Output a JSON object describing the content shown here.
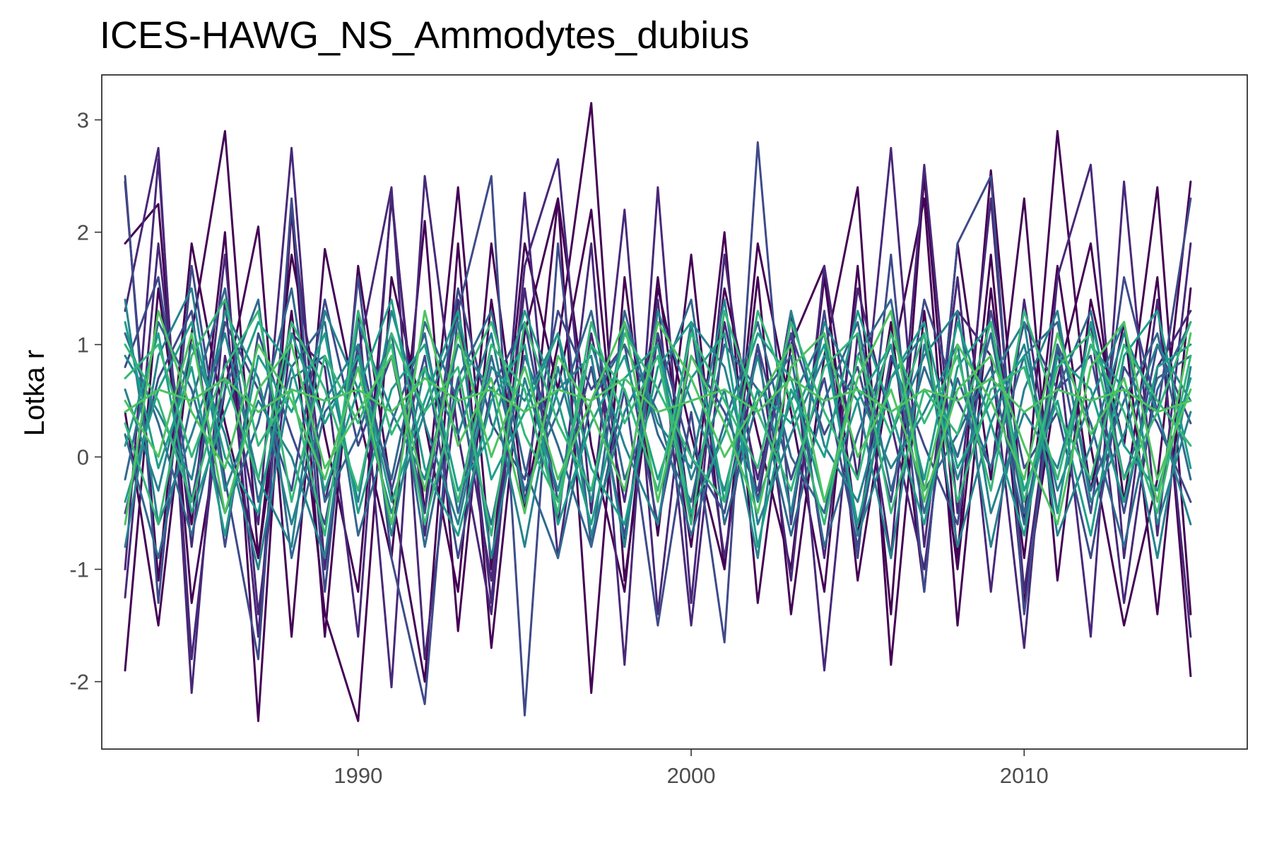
{
  "chart_data": {
    "type": "line",
    "title": "ICES-HAWG_NS_Ammodytes_dubius",
    "xlabel": "",
    "ylabel": "Lotka r",
    "xlim": [
      1982.3,
      2016.7
    ],
    "ylim": [
      -2.6,
      3.4
    ],
    "x_ticks": [
      1990,
      2000,
      2010
    ],
    "x_tick_labels": [
      "1990",
      "2000",
      "2010"
    ],
    "y_ticks": [
      -2,
      -1,
      0,
      1,
      2,
      3
    ],
    "y_tick_labels": [
      "-2",
      "-1",
      "0",
      "1",
      "2",
      "3"
    ],
    "grid": false,
    "legend": "none",
    "palette": [
      "#440154",
      "#482878",
      "#3e4a89",
      "#31688e",
      "#26828e",
      "#1f9e89",
      "#35b779",
      "#4dc361"
    ],
    "x": [
      1983,
      1984,
      1985,
      1986,
      1987,
      1988,
      1989,
      1990,
      1991,
      1992,
      1993,
      1994,
      1995,
      1996,
      1997,
      1998,
      1999,
      2000,
      2001,
      2002,
      2003,
      2004,
      2005,
      2006,
      2007,
      2008,
      2009,
      2010,
      2011,
      2012,
      2013,
      2014,
      2015
    ],
    "series": [
      {
        "values": [
          2.45,
          -1.1,
          1.9,
          0.3,
          -0.9,
          1.8,
          0.2,
          -1.2,
          2.3,
          -0.5,
          2.4,
          -1.0,
          1.9,
          0.6,
          2.2,
          -0.8,
          1.5,
          0.2,
          -1.0,
          1.9,
          0.4,
          -1.2,
          1.7,
          -1.4,
          2.5,
          -0.9,
          2.55,
          -0.6,
          2.9,
          0.1,
          -1.5,
          -0.2,
          2.45
        ]
      },
      {
        "values": [
          -1.9,
          1.5,
          -0.6,
          2.0,
          -2.35,
          2.2,
          -1.6,
          1.7,
          -0.3,
          -2.0,
          1.9,
          -1.7,
          1.1,
          2.3,
          -2.1,
          1.6,
          -0.7,
          1.8,
          -1.0,
          1.6,
          -1.4,
          0.9,
          2.4,
          -1.85,
          1.3,
          -1.0,
          1.8,
          -1.3,
          0.7,
          1.9,
          -0.4,
          1.6,
          -1.95
        ]
      },
      {
        "values": [
          1.9,
          2.25,
          -1.3,
          0.6,
          2.05,
          -1.6,
          1.85,
          0.4,
          -0.9,
          2.1,
          -1.55,
          1.4,
          -0.5,
          2.3,
          0.1,
          -1.2,
          1.6,
          -0.6,
          2.0,
          -1.3,
          1.0,
          1.7,
          -1.1,
          0.8,
          2.3,
          -1.5,
          1.5,
          -0.9,
          1.7,
          -0.3,
          1.2,
          -1.4,
          1.5
        ]
      },
      {
        "values": [
          0.4,
          -1.5,
          1.1,
          2.9,
          -0.9,
          1.3,
          -1.4,
          -2.35,
          1.6,
          0.3,
          -1.2,
          1.9,
          -0.4,
          1.0,
          3.15,
          -1.1,
          1.1,
          -0.8,
          1.5,
          0.2,
          -1.0,
          1.6,
          -0.7,
          1.2,
          -1.2,
          1.9,
          -0.2,
          2.3,
          -1.1,
          1.4,
          0.1,
          2.4,
          -1.4
        ]
      },
      {
        "values": [
          -1.0,
          2.65,
          -1.8,
          0.9,
          -0.6,
          2.75,
          -1.0,
          1.3,
          -2.05,
          2.5,
          0.2,
          -1.4,
          1.7,
          2.65,
          -0.5,
          2.2,
          -1.4,
          1.2,
          -0.9,
          1.0,
          -1.1,
          1.7,
          -0.2,
          2.75,
          -0.8,
          1.6,
          -1.2,
          1.4,
          -0.5,
          1.2,
          -1.3,
          0.8,
          1.3
        ]
      },
      {
        "values": [
          1.3,
          2.75,
          -2.1,
          1.4,
          -1.6,
          2.2,
          -0.4,
          0.9,
          2.4,
          -1.8,
          0.7,
          -1.1,
          1.5,
          -0.6,
          1.9,
          -1.85,
          2.4,
          -1.3,
          1.8,
          -0.4,
          1.3,
          -1.9,
          1.1,
          -0.9,
          2.6,
          -0.5,
          2.3,
          -1.2,
          1.0,
          -1.6,
          2.45,
          -0.7,
          1.9
        ]
      },
      {
        "values": [
          -1.25,
          1.9,
          -0.8,
          1.8,
          -1.4,
          1.1,
          0.8,
          -1.6,
          2.35,
          -0.7,
          1.4,
          -1.3,
          2.35,
          -0.9,
          1.1,
          -0.4,
          1.4,
          -1.5,
          1.2,
          -0.2,
          1.1,
          -0.9,
          1.5,
          0.3,
          -1.0,
          1.3,
          0.9,
          -1.7,
          1.6,
          2.6,
          -0.9,
          1.4,
          -1.6
        ]
      },
      {
        "values": [
          2.5,
          -1.3,
          1.7,
          -0.2,
          -1.8,
          2.3,
          -1.2,
          1.6,
          -0.9,
          -2.2,
          1.3,
          2.5,
          -2.3,
          1.9,
          -0.8,
          0.6,
          -1.5,
          0.4,
          -1.65,
          2.8,
          -0.6,
          1.3,
          -0.9,
          1.8,
          -1.2,
          1.9,
          2.5,
          -1.4,
          1.0,
          -0.5,
          1.6,
          0.4,
          2.3
        ]
      },
      {
        "values": [
          0.8,
          1.6,
          -0.4,
          1.2,
          0.6,
          -0.3,
          1.4,
          0.1,
          0.9,
          -0.5,
          1.5,
          0.3,
          -0.2,
          1.3,
          0.6,
          1.0,
          -0.6,
          0.9,
          0.4,
          -0.3,
          1.1,
          0.2,
          0.8,
          -0.4,
          1.4,
          0.5,
          -0.1,
          1.2,
          0.6,
          0.9,
          -0.5,
          1.0,
          0.3
        ]
      },
      {
        "values": [
          -0.5,
          0.7,
          1.3,
          -0.8,
          1.1,
          0.2,
          -0.6,
          1.0,
          -0.3,
          0.9,
          -0.9,
          0.6,
          1.2,
          -0.4,
          0.8,
          -0.7,
          1.1,
          0.0,
          -0.5,
          1.0,
          -0.2,
          0.7,
          -0.8,
          0.9,
          0.1,
          -0.6,
          1.3,
          -0.1,
          0.4,
          -0.9,
          0.8,
          0.3,
          -0.4
        ]
      },
      {
        "values": [
          0.2,
          -0.9,
          0.5,
          1.5,
          -0.4,
          0.8,
          1.2,
          -0.7,
          0.3,
          1.1,
          -0.5,
          0.9,
          -0.3,
          0.4,
          1.3,
          -0.2,
          0.6,
          1.4,
          -0.6,
          0.5,
          0.9,
          -0.8,
          0.2,
          1.0,
          -0.5,
          0.7,
          -0.1,
          0.9,
          1.2,
          -0.3,
          0.5,
          1.1,
          -0.2
        ]
      },
      {
        "values": [
          1.1,
          0.3,
          -0.7,
          0.6,
          1.4,
          -0.9,
          0.4,
          0.8,
          -0.2,
          1.2,
          0.5,
          -0.6,
          0.9,
          0.1,
          -0.8,
          1.3,
          0.2,
          -0.4,
          1.0,
          0.6,
          -0.7,
          0.5,
          1.2,
          -0.3,
          0.8,
          0.0,
          1.1,
          -0.5,
          0.6,
          1.3,
          -0.2,
          0.7,
          0.9
        ]
      },
      {
        "values": [
          -0.2,
          1.2,
          0.6,
          -0.5,
          0.3,
          1.5,
          -0.4,
          0.2,
          1.1,
          -0.8,
          0.7,
          1.3,
          -0.1,
          -0.9,
          0.5,
          1.0,
          0.4,
          -0.7,
          0.3,
          1.2,
          0.0,
          -0.5,
          0.9,
          1.4,
          -0.3,
          0.2,
          0.8,
          -0.6,
          1.0,
          0.3,
          -0.8,
          0.6,
          1.2
        ]
      },
      {
        "values": [
          0.6,
          -0.3,
          1.0,
          0.2,
          -1.0,
          0.7,
          0.9,
          -0.4,
          1.3,
          0.3,
          -0.6,
          0.8,
          0.5,
          1.1,
          -0.7,
          0.4,
          1.0,
          -0.2,
          0.6,
          -0.9,
          1.3,
          0.1,
          -0.4,
          0.7,
          1.1,
          -0.8,
          0.3,
          1.0,
          -0.3,
          0.5,
          1.2,
          -0.6,
          0.4
        ]
      },
      {
        "values": [
          1.4,
          -0.6,
          0.2,
          1.1,
          -0.2,
          -0.8,
          1.3,
          0.6,
          -0.5,
          0.4,
          1.2,
          -0.9,
          0.7,
          -0.3,
          1.0,
          0.1,
          -0.6,
          1.2,
          0.8,
          -0.4,
          0.5,
          1.1,
          -0.7,
          0.2,
          0.9,
          1.3,
          -0.5,
          0.4,
          -0.1,
          1.0,
          0.6,
          -0.9,
          0.8
        ]
      },
      {
        "values": [
          -0.8,
          0.9,
          1.5,
          -0.3,
          0.5,
          0.0,
          -0.9,
          1.2,
          0.4,
          -0.2,
          1.0,
          0.6,
          -0.8,
          0.8,
          -0.4,
          1.2,
          0.3,
          -0.1,
          1.4,
          -0.6,
          0.2,
          0.9,
          0.5,
          -0.9,
          1.0,
          -0.2,
          0.7,
          1.2,
          -0.7,
          0.1,
          1.1,
          0.4,
          -0.6
        ]
      },
      {
        "values": [
          0.9,
          0.4,
          -0.2,
          1.3,
          0.7,
          -0.6,
          0.5,
          1.0,
          -0.7,
          0.8,
          0.2,
          1.1,
          -0.4,
          0.6,
          0.9,
          -0.8,
          1.3,
          0.5,
          -0.3,
          0.9,
          -0.5,
          1.2,
          0.6,
          -0.1,
          0.4,
          1.0,
          -0.8,
          0.6,
          1.3,
          -0.4,
          0.2,
          1.0,
          0.5
        ]
      },
      {
        "values": [
          0.1,
          1.1,
          -0.5,
          0.4,
          1.2,
          0.8,
          -0.3,
          0.6,
          1.4,
          -0.1,
          -0.7,
          0.5,
          1.0,
          -0.6,
          0.3,
          0.9,
          -0.2,
          0.7,
          1.1,
          -0.8,
          0.6,
          0.0,
          1.3,
          0.4,
          -0.6,
          0.8,
          1.2,
          -0.3,
          0.5,
          -0.7,
          0.9,
          1.3,
          -0.1
        ]
      },
      {
        "values": [
          1.2,
          -0.1,
          0.8,
          -0.7,
          0.9,
          0.4,
          1.1,
          -0.5,
          0.6,
          1.0,
          -0.3,
          0.2,
          1.3,
          0.5,
          -0.6,
          0.7,
          1.0,
          -0.5,
          0.2,
          1.1,
          0.7,
          -0.4,
          0.5,
          1.0,
          -0.2,
          1.2,
          0.3,
          -0.7,
          0.9,
          0.6,
          -0.4,
          0.8,
          1.0
        ]
      },
      {
        "values": [
          -0.4,
          0.6,
          1.2,
          0.0,
          -0.5,
          1.1,
          0.3,
          0.9,
          -0.4,
          0.5,
          1.3,
          -0.2,
          0.4,
          1.1,
          -0.1,
          -0.6,
          0.8,
          1.2,
          -0.4,
          0.6,
          0.3,
          1.0,
          -0.6,
          0.7,
          1.2,
          -0.1,
          0.5,
          0.9,
          -0.5,
          1.2,
          0.1,
          -0.3,
          0.7
        ]
      },
      {
        "values": [
          0.7,
          1.0,
          0.0,
          0.8,
          1.3,
          -0.4,
          0.9,
          0.3,
          1.0,
          -0.6,
          0.6,
          1.2,
          0.2,
          -0.4,
          1.0,
          0.6,
          -0.3,
          1.1,
          0.5,
          -0.1,
          1.2,
          0.4,
          -0.2,
          1.1,
          0.3,
          0.9,
          -0.3,
          1.3,
          0.4,
          -0.2,
          1.0,
          0.5,
          0.1
        ]
      },
      {
        "values": [
          0.3,
          -0.6,
          0.9,
          1.4,
          0.1,
          0.6,
          -0.7,
          1.3,
          0.2,
          0.8,
          -0.4,
          1.0,
          0.6,
          -0.5,
          1.2,
          0.3,
          0.9,
          -0.6,
          1.3,
          0.4,
          -0.3,
          0.8,
          1.1,
          -0.5,
          0.6,
          0.2,
          1.2,
          -0.4,
          0.8,
          1.1,
          -0.2,
          0.4,
          1.2
        ]
      },
      {
        "values": [
          1.0,
          0.5,
          -0.4,
          0.7,
          -0.2,
          1.2,
          0.6,
          -0.3,
          1.1,
          0.4,
          0.8,
          -0.7,
          1.2,
          0.3,
          -0.3,
          1.1,
          0.6,
          0.0,
          -0.4,
          1.3,
          0.5,
          -0.6,
          0.9,
          0.2,
          1.1,
          -0.4,
          0.6,
          0.8,
          -0.2,
          1.0,
          0.4,
          -0.5,
          0.9
        ]
      },
      {
        "values": [
          -0.6,
          1.3,
          0.4,
          -0.1,
          1.0,
          0.5,
          -0.2,
          0.8,
          -0.6,
          1.3,
          0.1,
          0.7,
          -0.5,
          0.9,
          0.4,
          -0.3,
          1.2,
          0.7,
          0.0,
          0.5,
          1.0,
          -0.4,
          0.7,
          1.3,
          -0.4,
          0.6,
          0.9,
          0.1,
          -0.6,
          0.8,
          1.2,
          -0.2,
          0.6
        ]
      },
      {
        "values": [
          0.5,
          0.0,
          1.1,
          -0.5,
          0.6,
          1.0,
          -0.1,
          0.4,
          0.9,
          -0.3,
          1.1,
          0.0,
          0.8,
          -0.2,
          0.5,
          1.2,
          -0.4,
          0.9,
          0.3,
          -0.5,
          0.8,
          1.1,
          0.0,
          0.6,
          -0.3,
          1.0,
          0.5,
          -0.2,
          1.1,
          0.2,
          0.7,
          -0.4,
          1.1
        ]
      },
      {
        "values": [
          0.4,
          0.6,
          0.5,
          0.7,
          0.4,
          0.6,
          0.5,
          0.6,
          0.4,
          0.7,
          0.5,
          0.6,
          0.4,
          0.6,
          0.5,
          0.7,
          0.4,
          0.5,
          0.6,
          0.4,
          0.7,
          0.5,
          0.6,
          0.4,
          0.6,
          0.5,
          0.7,
          0.4,
          0.6,
          0.5,
          0.6,
          0.4,
          0.5
        ]
      }
    ]
  }
}
